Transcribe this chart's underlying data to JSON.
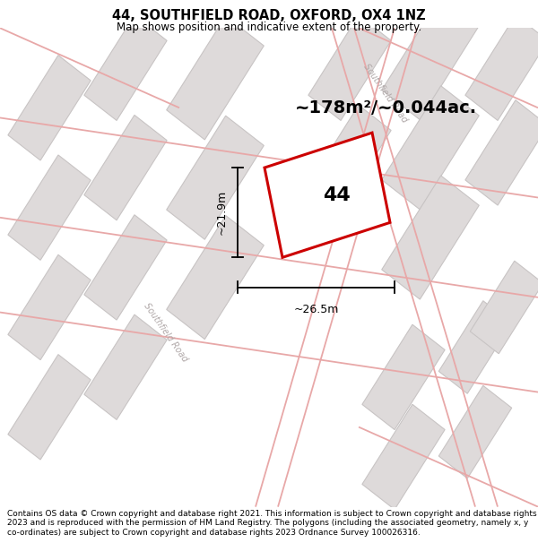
{
  "title": "44, SOUTHFIELD ROAD, OXFORD, OX4 1NZ",
  "subtitle": "Map shows position and indicative extent of the property.",
  "footer": "Contains OS data © Crown copyright and database right 2021. This information is subject to Crown copyright and database rights 2023 and is reproduced with the permission of HM Land Registry. The polygons (including the associated geometry, namely x, y co-ordinates) are subject to Crown copyright and database rights 2023 Ordnance Survey 100026316.",
  "area_text": "~178m²/~0.044ac.",
  "width_label": "~26.5m",
  "height_label": "~21.9m",
  "number_label": "44",
  "map_bg": "#f2f0f0",
  "block_color": "#dedada",
  "block_edge_color": "#c8c4c4",
  "road_line_color": "#e8a8a8",
  "highlight_color": "#cc0000",
  "road_label_color": "#b0a8a8",
  "figsize": [
    6.0,
    6.25
  ],
  "dpi": 100,
  "title_fontsize": 10.5,
  "subtitle_fontsize": 8.5,
  "footer_fontsize": 6.5
}
